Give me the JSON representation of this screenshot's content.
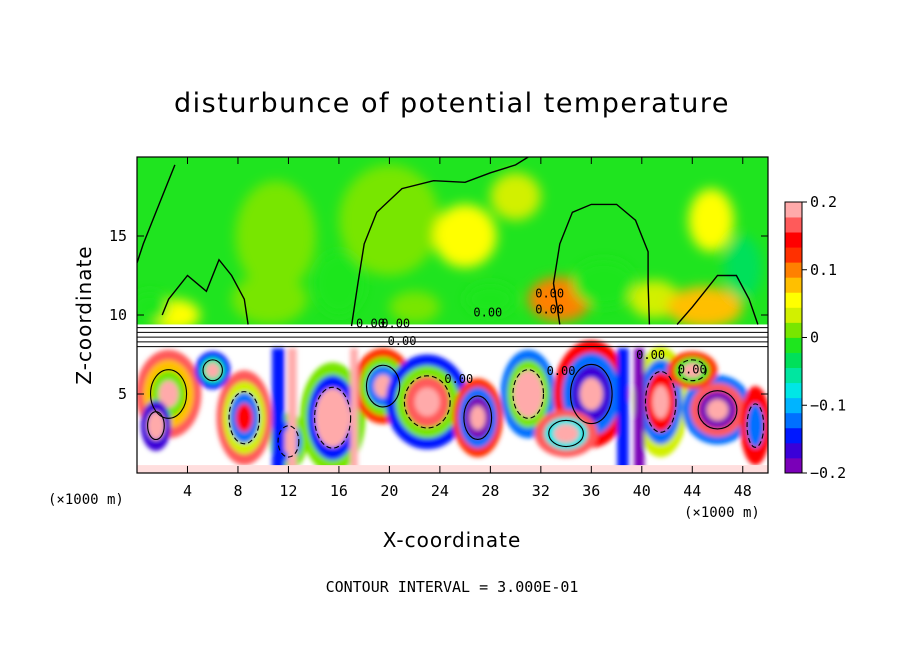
{
  "chart_data": {
    "type": "heatmap",
    "title": "disturbunce of potential temperature",
    "xlabel": "X-coordinate",
    "ylabel": "Z-coordinate",
    "x_unit_left": "(×1000 m)",
    "x_unit_right": "(×1000 m)",
    "xlim": [
      0,
      50
    ],
    "ylim": [
      0,
      20
    ],
    "x_ticks": [
      4,
      8,
      12,
      16,
      20,
      24,
      28,
      32,
      36,
      40,
      44,
      48
    ],
    "y_ticks": [
      5,
      10,
      15
    ],
    "colorbar": {
      "min": -0.2,
      "max": 0.2,
      "tick_values": [
        0.2,
        0.1,
        0,
        -0.1,
        -0.2
      ],
      "tick_labels": [
        "0.2",
        "0.1",
        "0",
        "−0.1",
        "−0.2"
      ],
      "colors": [
        "#7a00b8",
        "#3a00d8",
        "#0018ff",
        "#0070ff",
        "#00b4ff",
        "#00e6e6",
        "#00e6a0",
        "#00e05a",
        "#1ee61e",
        "#78e600",
        "#d2f000",
        "#ffff00",
        "#ffbf00",
        "#ff8000",
        "#ff3000",
        "#ff0000",
        "#ff5a5a",
        "#ffaaaa"
      ]
    },
    "contour_labels": [
      "0.00",
      "0.00",
      "0.00",
      "0.00",
      "0.00",
      "0.00",
      "0.00",
      "0.00",
      "0.00",
      "0.00"
    ],
    "footer": "CONTOUR INTERVAL = 3.000E-01"
  }
}
